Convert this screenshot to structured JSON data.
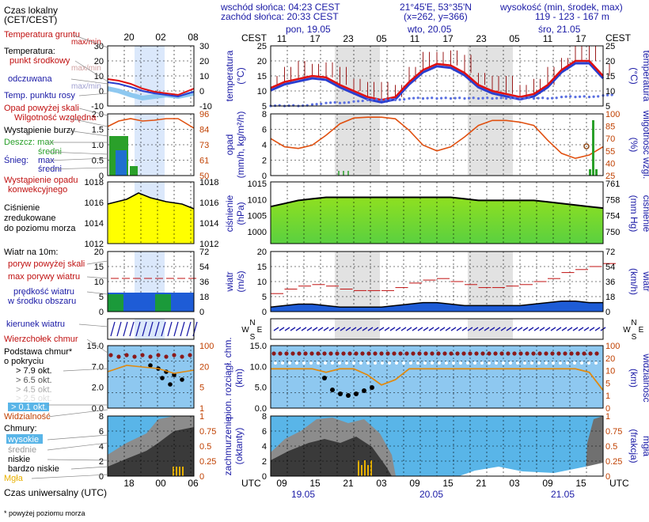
{
  "header": {
    "sunrise": "wschód słońca: 04:23 CEST",
    "sunset": "zachód słońca: 20:33 CEST",
    "coords": "21°45'E, 53°35'N",
    "grid": "(x=262, y=366)",
    "elev_label": "wysokość (min, środek, max)",
    "elev_values": "119 - 123 - 167 m",
    "local_time": "Czas lokalny",
    "local_time_zone": "(CET/CEST)",
    "cest_left": "CEST",
    "cest_right": "CEST"
  },
  "days_top": [
    "pon, 19.05",
    "wto, 20.05",
    "śro, 21.05"
  ],
  "hours_top": [
    "11",
    "17",
    "23",
    "05",
    "11",
    "17",
    "23",
    "05",
    "11",
    "17"
  ],
  "hours_bottom": [
    "09",
    "15",
    "21",
    "03",
    "09",
    "15",
    "21",
    "03",
    "09",
    "15"
  ],
  "days_bottom": [
    "19.05",
    "20.05",
    "21.05"
  ],
  "legend_hours_top": [
    "20",
    "02",
    "08"
  ],
  "legend_hours_bottom": [
    "18",
    "00",
    "06"
  ],
  "legend": {
    "temp_ground": "Temperatura gruntu",
    "max_min": "max/min",
    "temperature": "Temperatura:",
    "mid_point": "punkt środkowy",
    "max_min2": "max/min",
    "perceived": "odczuwana",
    "max_min3": "max/min",
    "dew": "Temp. punktu rosy",
    "precip_above": "Opad powyżej skali",
    "humidity": "Wilgotność względna",
    "storm": "Wystąpienie burzy",
    "rain": "Deszcz: max",
    "rain_mid": "średni",
    "snow": "Śnieg:",
    "snow_max": "max",
    "snow_mid": "średni",
    "conv1": "Wystąpienie opadu",
    "conv2": "konwekcyjnego",
    "pressure1": "Ciśnienie",
    "pressure2": "zredukowane",
    "pressure3": "do poziomu morza",
    "wind10": "Wiatr na 10m:",
    "gust_above": "poryw powyżej skali",
    "max_gust": "max porywy wiatru",
    "wind_speed1": "prędkość wiatru",
    "wind_speed2": "w środku obszaru",
    "wind_dir": "kierunek wiatru",
    "cloud_top": "Wierzchołek chmur",
    "cloud_base1": "Podstawa chmur*",
    "cloud_base2": "o pokryciu",
    "okt79": "> 7.9 okt.",
    "okt65": "> 6.5 okt.",
    "okt45": "> 4.5 okt.",
    "okt25": "> 2.5 okt.",
    "okt01": "> 0.1 okt.",
    "visibility": "Widzialność",
    "clouds": "Chmury:",
    "high": "wysokie",
    "mid": "średnie",
    "low": "niskie",
    "very_low": "bardzo niskie",
    "fog": "Mgła",
    "utc": "Czas uniwersalny (UTC)",
    "footnote": "* powyżej poziomu morza"
  },
  "axis_labels": {
    "temp_left": "temperatura",
    "temp_left_unit": "(°C)",
    "temp_right": "temperatura",
    "temp_right_unit": "(°C)",
    "precip_left": "opad",
    "precip_left_unit": "(mm/h, kg/m²/h)",
    "humid_right": "wilgotność wzgl.",
    "humid_right_unit": "(%)",
    "press_left": "ciśnienie",
    "press_left_unit": "(hPa)",
    "press_right": "ciśnienie",
    "press_right_unit": "(mm Hg)",
    "wind_left": "wiatr",
    "wind_left_unit": "(m/s)",
    "wind_right": "wiatr",
    "wind_right_unit": "(km/h)",
    "cloud_left": "pion. rozciągł. chm.",
    "cloud_left_unit": "(km)",
    "vis_right": "widzialność",
    "vis_right_unit": "(km)",
    "cover_left": "zachmurzenie",
    "cover_left_unit": "(oktanty)",
    "fog_right": "mgła",
    "fog_right_unit": "(frakcja)",
    "utc_left": "UTC",
    "utc_right": "UTC"
  },
  "ticks": {
    "temp_left": [
      "25",
      "20",
      "15",
      "10",
      "5"
    ],
    "temp_right": [
      "25",
      "20",
      "15",
      "10",
      "5"
    ],
    "precip_left": [
      "8",
      "6",
      "4",
      "2",
      "0"
    ],
    "humid_right": [
      "100",
      "85",
      "70",
      "55",
      "40",
      "25"
    ],
    "press_left": [
      "1015",
      "1010",
      "1005",
      "1000"
    ],
    "press_right": [
      "761",
      "758",
      "754",
      "750"
    ],
    "wind_left": [
      "20",
      "15",
      "10",
      "5",
      "0"
    ],
    "wind_right": [
      "72",
      "54",
      "36",
      "18",
      "0"
    ],
    "cloud_left": [
      "15.0",
      "10.0",
      "5.0",
      "0.0"
    ],
    "vis_right": [
      "100",
      "20",
      "10",
      "5",
      "1",
      "0"
    ],
    "cover_left": [
      "8",
      "6",
      "4",
      "2",
      "0"
    ],
    "fog_right": [
      "1",
      "0.75",
      "0.5",
      "0.25",
      "0"
    ],
    "leg_temp_left": [
      "30",
      "20",
      "10",
      "0",
      "-10"
    ],
    "leg_temp_right": [
      "30",
      "20",
      "10",
      "0",
      "-10"
    ],
    "leg_precip_left": [
      "2.0",
      "1.5",
      "1.0",
      "0.5",
      "0"
    ],
    "leg_humid_right": [
      "96",
      "84",
      "73",
      "61",
      "50"
    ],
    "leg_press_left": [
      "1018",
      "1016",
      "1014",
      "1012"
    ],
    "leg_press_right": [
      "1018",
      "1016",
      "1014",
      "1012"
    ],
    "leg_wind_left": [
      "20",
      "15",
      "10",
      "5",
      "0"
    ],
    "leg_wind_right": [
      "72",
      "54",
      "36",
      "18",
      "0"
    ],
    "leg_cloud_left": [
      "15.0",
      "7.0",
      "2.0",
      "0.0"
    ],
    "leg_vis_right": [
      "100",
      "20",
      "5",
      "1"
    ],
    "leg_cover_left": [
      "8",
      "6",
      "4",
      "2",
      "0"
    ],
    "leg_fog_right": [
      "1",
      "0.75",
      "0.5",
      "0.25",
      "0"
    ]
  },
  "chart_data": {
    "type": "line",
    "x_hours_utc_from_start": [
      0,
      3,
      6,
      9,
      12,
      15,
      18,
      21,
      24,
      27,
      30,
      33,
      36,
      39,
      42,
      45,
      48,
      51,
      54,
      57,
      60,
      63,
      66,
      69,
      72
    ],
    "temperature_mid": [
      11,
      13,
      14,
      15,
      14.5,
      12,
      10,
      8,
      7,
      8,
      13,
      17,
      19,
      18.5,
      16,
      12,
      10,
      9,
      8,
      9,
      12,
      17,
      20,
      20,
      15
    ],
    "dew_point": [
      5,
      5,
      5,
      5.5,
      6,
      6,
      6.5,
      7,
      7,
      7,
      7.5,
      7.5,
      7.5,
      7.5,
      7.5,
      7.5,
      7.5,
      7.5,
      7.5,
      7.5,
      7.5,
      8,
      8,
      8,
      8.5
    ],
    "humidity_pct": [
      70,
      60,
      58,
      62,
      74,
      88,
      95,
      96,
      96,
      94,
      80,
      62,
      55,
      60,
      72,
      86,
      92,
      92,
      90,
      86,
      68,
      52,
      46,
      50,
      60
    ],
    "pressure_hpa": [
      1008,
      1009,
      1010,
      1010.5,
      1011,
      1011,
      1011,
      1011,
      1011,
      1011,
      1011,
      1011,
      1011,
      1011,
      1010.5,
      1010,
      1010,
      1010,
      1010,
      1010,
      1009.5,
      1009,
      1008.5,
      1008,
      1007.5
    ],
    "wind_speed_ms": [
      1.5,
      2,
      2.5,
      2.5,
      2,
      1.5,
      1.5,
      1.5,
      1.5,
      2,
      2.5,
      3,
      3,
      2.5,
      2,
      2,
      2,
      2,
      2,
      2.5,
      3,
      3.5,
      3.5,
      3,
      3
    ],
    "wind_gust_ms": [
      6,
      7.5,
      8.5,
      9,
      8.5,
      7.5,
      7,
      7,
      7,
      8,
      9.5,
      10.5,
      11,
      10,
      9,
      8,
      8,
      8.5,
      9,
      10,
      11,
      13,
      14,
      15,
      16
    ],
    "visibility_km": [
      20,
      20,
      20,
      20,
      15,
      20,
      20,
      12,
      5,
      8,
      20,
      20,
      20,
      20,
      20,
      20,
      20,
      20,
      20,
      20,
      20,
      20,
      20,
      15,
      3
    ],
    "fog_fraction": [
      0,
      0,
      0,
      0,
      0,
      0,
      0,
      0,
      0.1,
      0.12,
      0,
      0,
      0,
      0,
      0,
      0,
      0,
      0,
      0,
      0,
      0,
      0,
      0,
      0,
      0
    ]
  }
}
